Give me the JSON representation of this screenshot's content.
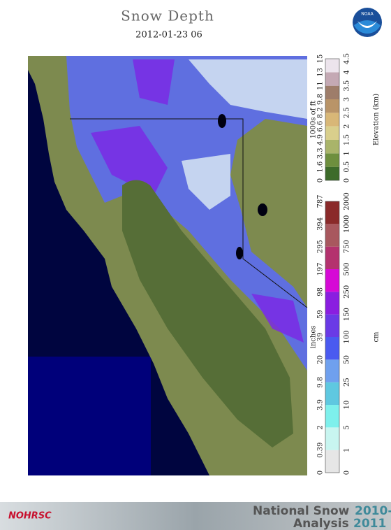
{
  "header": {
    "title": "Snow Depth",
    "subtitle": "2012-01-23 06",
    "logo": "NOAA"
  },
  "elevation_legend": {
    "label_left": "1000s of ft",
    "label_right": "Elevation (km)",
    "ft_labels": [
      "0",
      "1.6",
      "3.3",
      "4.9",
      "6.6",
      "8.2",
      "9.8",
      "11",
      "13",
      "15"
    ],
    "km_labels": [
      "0",
      "0.5",
      "1",
      "1.5",
      "2",
      "2.5",
      "3",
      "3.5",
      "4",
      "4.5"
    ],
    "colors": [
      "#3d6b2a",
      "#6e8f3e",
      "#a9b46a",
      "#d9cf8c",
      "#d8b777",
      "#b99468",
      "#9e7d6a",
      "#c4a9b4",
      "#ece4ec"
    ]
  },
  "snow_legend": {
    "label_left": "inches",
    "label_right": "cm",
    "inch_labels": [
      "0",
      "0.39",
      "2",
      "3.9",
      "9.8",
      "20",
      "39",
      "59",
      "98",
      "197",
      "295",
      "394",
      "787"
    ],
    "cm_labels": [
      "0",
      "1",
      "5",
      "10",
      "25",
      "50",
      "100",
      "150",
      "250",
      "500",
      "750",
      "1000",
      "2000"
    ],
    "colors": [
      "#e6e6e6",
      "#c8f5f0",
      "#7ef0ec",
      "#5fc8e0",
      "#6fa0ee",
      "#4a5af0",
      "#6a3ae6",
      "#8a1ee0",
      "#d60ad6",
      "#b4326e",
      "#a8585e",
      "#8a2a2a"
    ]
  },
  "banner": {
    "agency": "NOHRSC",
    "line1": "National Snow",
    "line2": "Analysis",
    "years1": "2010-",
    "years2": "2011"
  }
}
